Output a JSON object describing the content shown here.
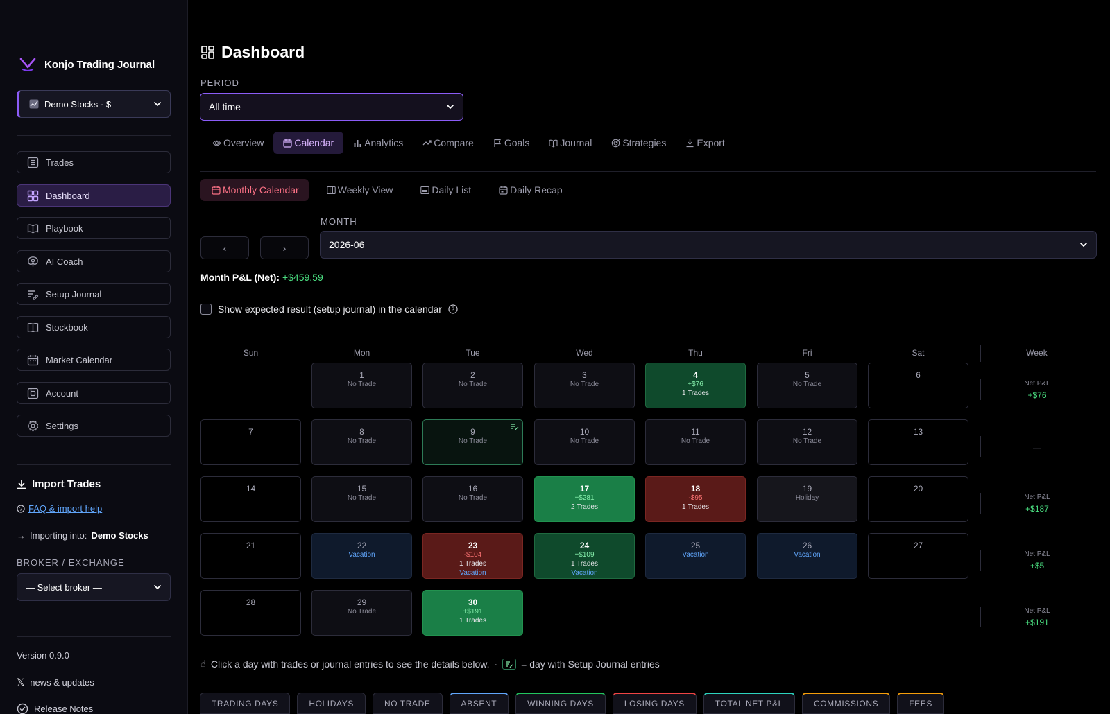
{
  "app": {
    "name": "Konjo Trading Journal",
    "account": "Demo Stocks · $"
  },
  "sidebar": {
    "items": [
      {
        "key": "trades",
        "label": "Trades",
        "icon": "list-icon"
      },
      {
        "key": "dashboard",
        "label": "Dashboard",
        "icon": "grid-icon",
        "active": true
      },
      {
        "key": "playbook",
        "label": "Playbook",
        "icon": "book-open-icon"
      },
      {
        "key": "ai-coach",
        "label": "AI Coach",
        "icon": "brain-icon"
      },
      {
        "key": "setup-journal",
        "label": "Setup Journal",
        "icon": "list-edit-icon"
      },
      {
        "key": "stockbook",
        "label": "Stockbook",
        "icon": "book-icon"
      },
      {
        "key": "market-calendar",
        "label": "Market Calendar",
        "icon": "calendar-icon"
      },
      {
        "key": "account",
        "label": "Account",
        "icon": "wallet-icon"
      },
      {
        "key": "settings",
        "label": "Settings",
        "icon": "gear-icon"
      }
    ],
    "import_title": "Import Trades",
    "faq_link": "FAQ & import help",
    "importing_prefix": "Importing into:",
    "importing_target": "Demo Stocks",
    "broker_label": "BROKER / EXCHANGE",
    "broker_placeholder": "— Select broker —",
    "version": "Version 0.9.0",
    "news": "news & updates",
    "release_notes": "Release Notes"
  },
  "header": {
    "title": "Dashboard",
    "period_label": "PERIOD",
    "period_value": "All time"
  },
  "tabs": [
    {
      "label": "Overview",
      "icon": "eye-icon"
    },
    {
      "label": "Calendar",
      "icon": "calendar-icon",
      "active": true
    },
    {
      "label": "Analytics",
      "icon": "bar-chart-icon"
    },
    {
      "label": "Compare",
      "icon": "compare-icon"
    },
    {
      "label": "Goals",
      "icon": "flag-icon"
    },
    {
      "label": "Journal",
      "icon": "book-open-icon"
    },
    {
      "label": "Strategies",
      "icon": "target-icon"
    },
    {
      "label": "Export",
      "icon": "download-icon"
    }
  ],
  "subtabs": [
    {
      "label": "Monthly Calendar",
      "icon": "calendar-icon",
      "active": true
    },
    {
      "label": "Weekly View",
      "icon": "columns-icon"
    },
    {
      "label": "Daily List",
      "icon": "list-icon"
    },
    {
      "label": "Daily Recap",
      "icon": "calendar-check-icon"
    }
  ],
  "month": {
    "label": "MONTH",
    "value": "2026-06",
    "prev": "‹",
    "next": "›",
    "pnl_label": "Month P&L (Net):",
    "pnl_value": "+$459.59"
  },
  "show_expected_label": "Show expected result (setup journal) in the calendar",
  "calendar": {
    "weekdays": [
      "Sun",
      "Mon",
      "Tue",
      "Wed",
      "Thu",
      "Fri",
      "Sat"
    ],
    "week_header": "Week",
    "weeks": [
      {
        "days": [
          null,
          {
            "n": "1",
            "status": "No Trade"
          },
          {
            "n": "2",
            "status": "No Trade"
          },
          {
            "n": "3",
            "status": "No Trade"
          },
          {
            "n": "4",
            "type": "win",
            "pnl": "+$76",
            "trades": "1 Trades"
          },
          {
            "n": "5",
            "status": "No Trade"
          },
          {
            "n": "6",
            "type": "empty"
          }
        ],
        "week_label": "Net P&L",
        "week_value": "+$76"
      },
      {
        "days": [
          {
            "n": "7",
            "type": "empty"
          },
          {
            "n": "8",
            "status": "No Trade"
          },
          {
            "n": "9",
            "status": "No Trade",
            "type": "setup"
          },
          {
            "n": "10",
            "status": "No Trade"
          },
          {
            "n": "11",
            "status": "No Trade"
          },
          {
            "n": "12",
            "status": "No Trade"
          },
          {
            "n": "13",
            "type": "empty"
          }
        ],
        "week_label": "",
        "week_value": "—"
      },
      {
        "days": [
          {
            "n": "14",
            "type": "empty"
          },
          {
            "n": "15",
            "status": "No Trade"
          },
          {
            "n": "16",
            "status": "No Trade"
          },
          {
            "n": "17",
            "type": "win-big",
            "pnl": "+$281",
            "trades": "2 Trades"
          },
          {
            "n": "18",
            "type": "loss",
            "pnl": "-$95",
            "trades": "1 Trades"
          },
          {
            "n": "19",
            "type": "holiday",
            "status": "Holiday"
          },
          {
            "n": "20",
            "type": "empty"
          }
        ],
        "week_label": "Net P&L",
        "week_value": "+$187"
      },
      {
        "days": [
          {
            "n": "21",
            "type": "empty"
          },
          {
            "n": "22",
            "type": "vacation",
            "vac": "Vacation"
          },
          {
            "n": "23",
            "type": "loss",
            "pnl": "-$104",
            "trades": "1 Trades",
            "vac": "Vacation"
          },
          {
            "n": "24",
            "type": "win",
            "pnl": "+$109",
            "trades": "1 Trades",
            "vac": "Vacation"
          },
          {
            "n": "25",
            "type": "vacation",
            "vac": "Vacation"
          },
          {
            "n": "26",
            "type": "vacation",
            "vac": "Vacation"
          },
          {
            "n": "27",
            "type": "empty"
          }
        ],
        "week_label": "Net P&L",
        "week_value": "+$5"
      },
      {
        "days": [
          {
            "n": "28",
            "type": "empty"
          },
          {
            "n": "29",
            "status": "No Trade"
          },
          {
            "n": "30",
            "type": "win-big",
            "pnl": "+$191",
            "trades": "1 Trades"
          },
          null,
          null,
          null,
          null
        ],
        "week_label": "Net P&L",
        "week_value": "+$191"
      }
    ]
  },
  "hint": {
    "text": "Click a day with trades or journal entries to see the details below.",
    "sep": "·",
    "legend": "= day with Setup Journal entries"
  },
  "stats": [
    {
      "label": "TRADING DAYS",
      "accent": ""
    },
    {
      "label": "HOLIDAYS",
      "accent": ""
    },
    {
      "label": "NO TRADE",
      "accent": ""
    },
    {
      "label": "ABSENT",
      "accent": "#60a5fa"
    },
    {
      "label": "WINNING DAYS",
      "accent": "#22c55e"
    },
    {
      "label": "LOSING DAYS",
      "accent": "#ef4444"
    },
    {
      "label": "TOTAL NET P&L",
      "accent": "#2dd4bf"
    },
    {
      "label": "COMMISSIONS",
      "accent": "#f59e0b"
    },
    {
      "label": "FEES",
      "accent": "#f59e0b"
    }
  ]
}
